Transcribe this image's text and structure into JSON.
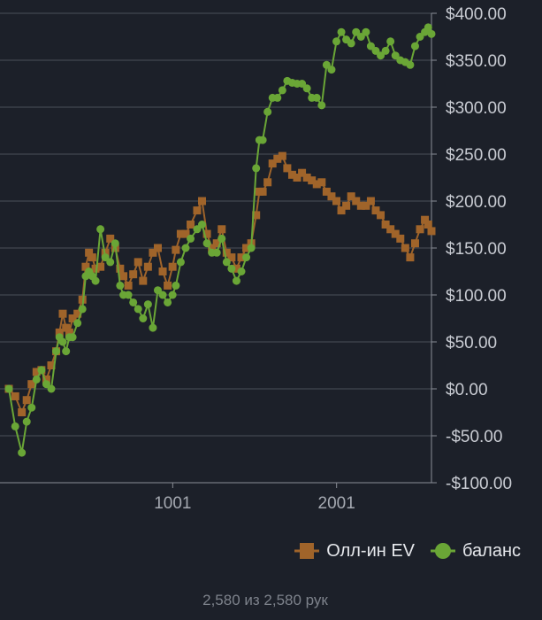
{
  "chart_data": {
    "type": "scatter",
    "x_ticks": [
      1001,
      2001
    ],
    "x_tick_labels": [
      "1001",
      "2001"
    ],
    "xlim": [
      1,
      2580
    ],
    "ylim": [
      -100,
      400
    ],
    "y_ticks": [
      -100,
      -50,
      0,
      50,
      100,
      150,
      200,
      250,
      300,
      350,
      400
    ],
    "y_tick_labels": [
      "-$100.00",
      "-$50.00",
      "$0.00",
      "$50.00",
      "$100.00",
      "$150.00",
      "$200.00",
      "$250.00",
      "$300.00",
      "$350.00",
      "$400.00"
    ],
    "y_axis_side": "right",
    "grid": true,
    "legend_position": "bottom-right",
    "series": [
      {
        "name": "Олл-ин EV",
        "color": "#a0642a",
        "marker": "square",
        "points": [
          [
            1,
            0
          ],
          [
            40,
            -8
          ],
          [
            80,
            -25
          ],
          [
            110,
            -12
          ],
          [
            140,
            5
          ],
          [
            170,
            18
          ],
          [
            200,
            20
          ],
          [
            230,
            10
          ],
          [
            260,
            25
          ],
          [
            290,
            40
          ],
          [
            310,
            60
          ],
          [
            330,
            80
          ],
          [
            350,
            65
          ],
          [
            370,
            60
          ],
          [
            390,
            75
          ],
          [
            420,
            80
          ],
          [
            450,
            95
          ],
          [
            470,
            130
          ],
          [
            490,
            145
          ],
          [
            510,
            140
          ],
          [
            530,
            128
          ],
          [
            560,
            130
          ],
          [
            590,
            145
          ],
          [
            620,
            160
          ],
          [
            650,
            150
          ],
          [
            680,
            128
          ],
          [
            700,
            120
          ],
          [
            730,
            110
          ],
          [
            760,
            122
          ],
          [
            790,
            135
          ],
          [
            820,
            115
          ],
          [
            850,
            130
          ],
          [
            880,
            145
          ],
          [
            910,
            150
          ],
          [
            940,
            125
          ],
          [
            970,
            110
          ],
          [
            1000,
            130
          ],
          [
            1020,
            148
          ],
          [
            1050,
            165
          ],
          [
            1080,
            165
          ],
          [
            1110,
            175
          ],
          [
            1150,
            190
          ],
          [
            1180,
            200
          ],
          [
            1210,
            165
          ],
          [
            1240,
            150
          ],
          [
            1270,
            155
          ],
          [
            1300,
            170
          ],
          [
            1330,
            145
          ],
          [
            1360,
            140
          ],
          [
            1390,
            128
          ],
          [
            1420,
            140
          ],
          [
            1450,
            150
          ],
          [
            1480,
            155
          ],
          [
            1510,
            185
          ],
          [
            1530,
            210
          ],
          [
            1550,
            210
          ],
          [
            1580,
            220
          ],
          [
            1610,
            240
          ],
          [
            1640,
            245
          ],
          [
            1670,
            248
          ],
          [
            1700,
            235
          ],
          [
            1730,
            228
          ],
          [
            1760,
            225
          ],
          [
            1790,
            230
          ],
          [
            1820,
            225
          ],
          [
            1850,
            222
          ],
          [
            1880,
            218
          ],
          [
            1910,
            220
          ],
          [
            1940,
            210
          ],
          [
            1970,
            205
          ],
          [
            2000,
            200
          ],
          [
            2030,
            190
          ],
          [
            2060,
            195
          ],
          [
            2090,
            205
          ],
          [
            2120,
            200
          ],
          [
            2150,
            195
          ],
          [
            2180,
            195
          ],
          [
            2210,
            200
          ],
          [
            2240,
            190
          ],
          [
            2270,
            185
          ],
          [
            2300,
            175
          ],
          [
            2330,
            170
          ],
          [
            2360,
            165
          ],
          [
            2390,
            160
          ],
          [
            2420,
            150
          ],
          [
            2450,
            140
          ],
          [
            2480,
            155
          ],
          [
            2510,
            170
          ],
          [
            2540,
            180
          ],
          [
            2560,
            175
          ],
          [
            2580,
            168
          ]
        ]
      },
      {
        "name": "баланс",
        "color": "#6aa636",
        "marker": "circle",
        "points": [
          [
            1,
            0
          ],
          [
            40,
            -40
          ],
          [
            80,
            -68
          ],
          [
            110,
            -35
          ],
          [
            140,
            -20
          ],
          [
            170,
            10
          ],
          [
            200,
            20
          ],
          [
            230,
            5
          ],
          [
            260,
            0
          ],
          [
            290,
            40
          ],
          [
            310,
            55
          ],
          [
            330,
            50
          ],
          [
            350,
            40
          ],
          [
            370,
            55
          ],
          [
            390,
            55
          ],
          [
            420,
            70
          ],
          [
            450,
            85
          ],
          [
            470,
            120
          ],
          [
            490,
            125
          ],
          [
            510,
            120
          ],
          [
            530,
            115
          ],
          [
            560,
            170
          ],
          [
            590,
            140
          ],
          [
            620,
            135
          ],
          [
            650,
            155
          ],
          [
            680,
            110
          ],
          [
            700,
            100
          ],
          [
            730,
            100
          ],
          [
            760,
            92
          ],
          [
            790,
            85
          ],
          [
            820,
            75
          ],
          [
            850,
            90
          ],
          [
            880,
            65
          ],
          [
            910,
            105
          ],
          [
            940,
            100
          ],
          [
            970,
            92
          ],
          [
            1000,
            100
          ],
          [
            1020,
            110
          ],
          [
            1050,
            135
          ],
          [
            1080,
            150
          ],
          [
            1110,
            160
          ],
          [
            1150,
            170
          ],
          [
            1180,
            175
          ],
          [
            1210,
            155
          ],
          [
            1240,
            145
          ],
          [
            1270,
            145
          ],
          [
            1300,
            160
          ],
          [
            1330,
            135
          ],
          [
            1360,
            128
          ],
          [
            1390,
            115
          ],
          [
            1420,
            125
          ],
          [
            1450,
            140
          ],
          [
            1480,
            150
          ],
          [
            1510,
            235
          ],
          [
            1530,
            265
          ],
          [
            1550,
            265
          ],
          [
            1580,
            295
          ],
          [
            1610,
            310
          ],
          [
            1640,
            310
          ],
          [
            1670,
            318
          ],
          [
            1700,
            328
          ],
          [
            1730,
            326
          ],
          [
            1760,
            325
          ],
          [
            1790,
            325
          ],
          [
            1820,
            320
          ],
          [
            1850,
            310
          ],
          [
            1880,
            310
          ],
          [
            1910,
            302
          ],
          [
            1940,
            345
          ],
          [
            1970,
            340
          ],
          [
            2000,
            370
          ],
          [
            2030,
            380
          ],
          [
            2060,
            372
          ],
          [
            2090,
            368
          ],
          [
            2120,
            380
          ],
          [
            2150,
            375
          ],
          [
            2180,
            380
          ],
          [
            2210,
            365
          ],
          [
            2240,
            360
          ],
          [
            2270,
            355
          ],
          [
            2300,
            360
          ],
          [
            2330,
            370
          ],
          [
            2360,
            355
          ],
          [
            2390,
            350
          ],
          [
            2420,
            348
          ],
          [
            2450,
            345
          ],
          [
            2480,
            365
          ],
          [
            2510,
            375
          ],
          [
            2540,
            380
          ],
          [
            2560,
            385
          ],
          [
            2580,
            378
          ]
        ]
      }
    ]
  },
  "footer": {
    "hands_text": "2,580 из 2,580 рук"
  }
}
